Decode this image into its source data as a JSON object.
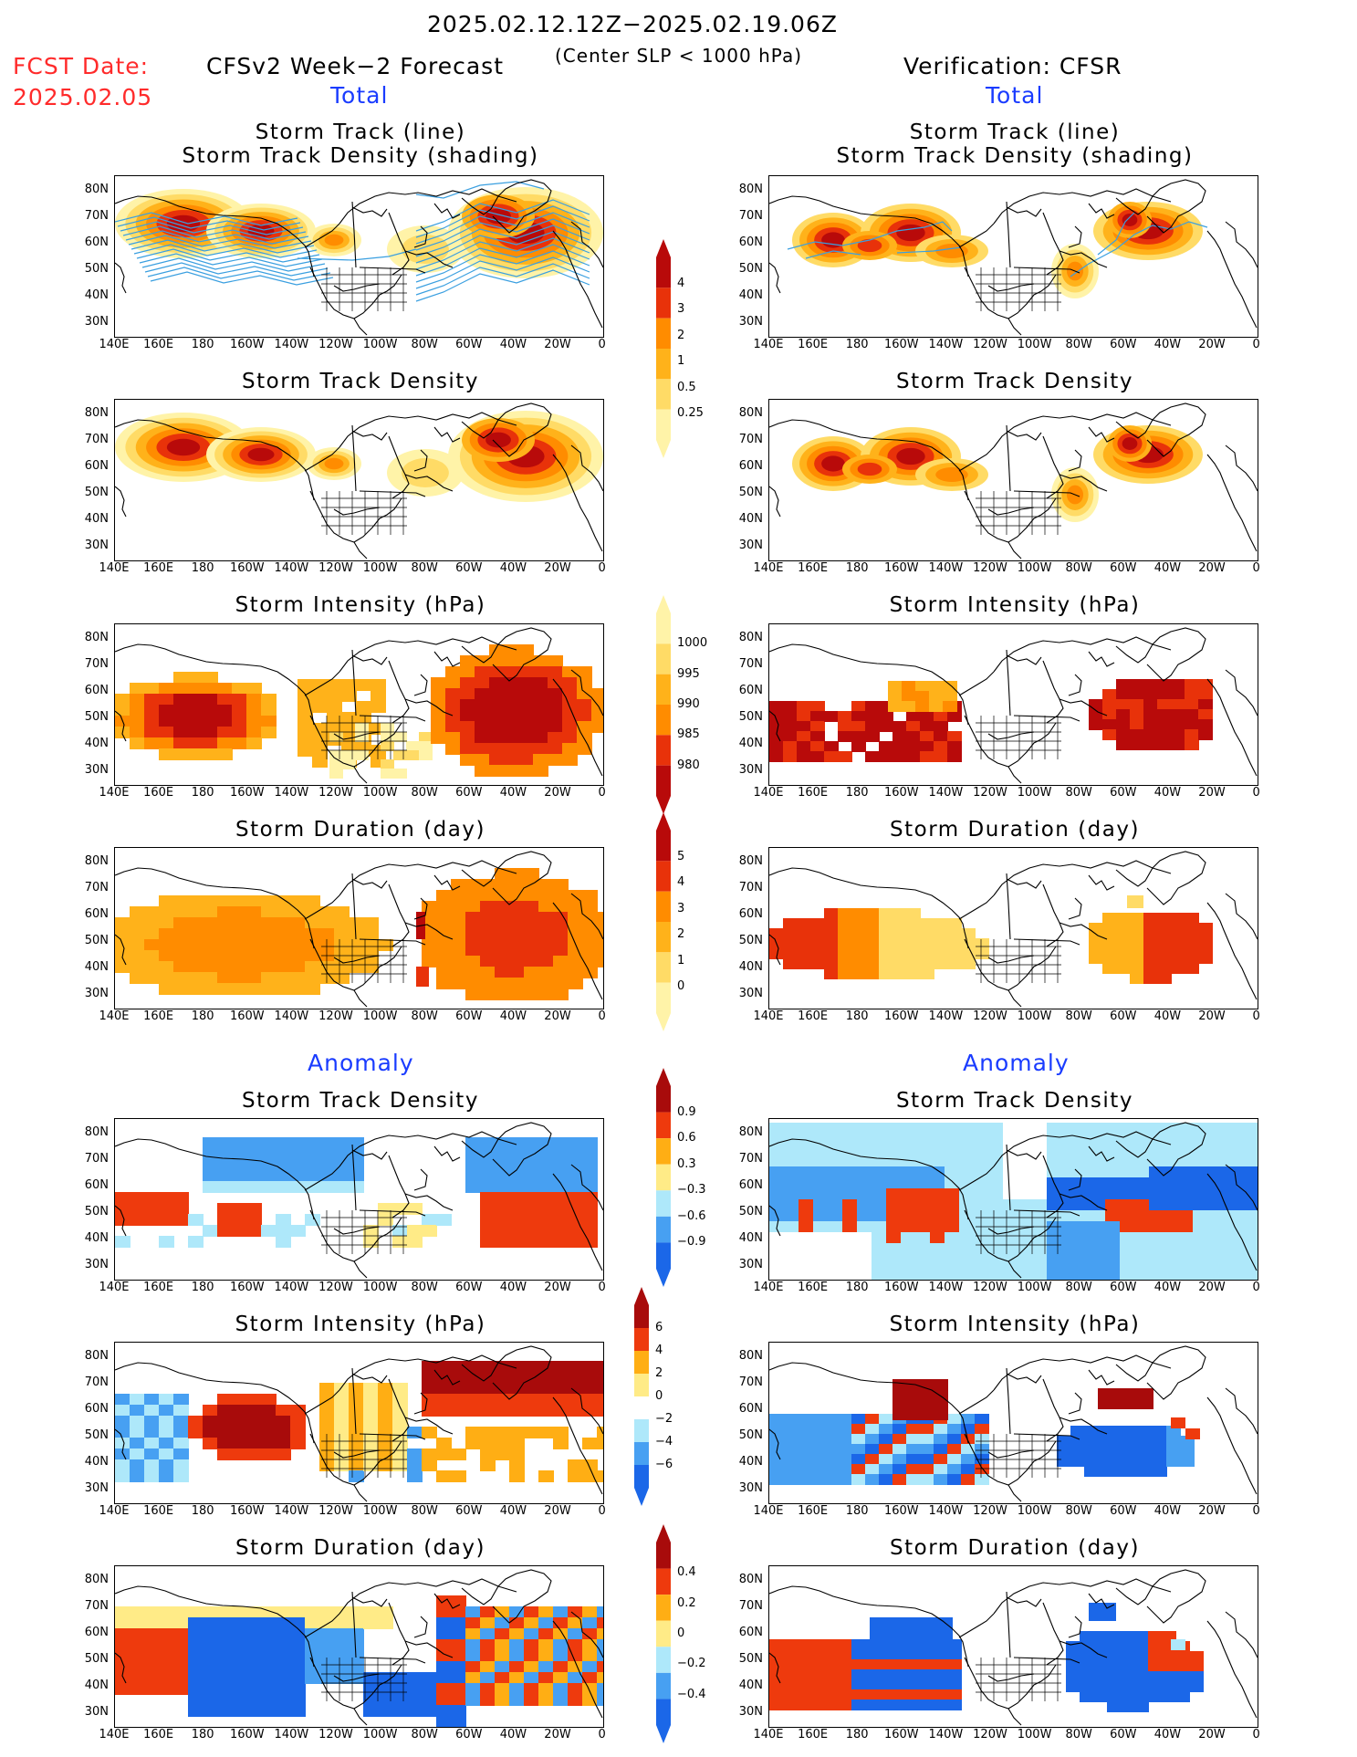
{
  "header": {
    "date_range": "2025.02.12.12Z−2025.02.19.06Z",
    "fcst_label": "FCST Date:",
    "fcst_date": "2025.02.05",
    "left_title": "CFSv2 Week−2 Forecast",
    "criterion": "(Center SLP < 1000 hPa)",
    "right_title": "Verification: CFSR",
    "total_label": "Total",
    "anomaly_label": "Anomaly"
  },
  "panel_titles": {
    "track_line": "Storm Track (line)",
    "track_shading": "Storm Track Density (shading)",
    "density": "Storm Track Density",
    "intensity": "Storm Intensity (hPa)",
    "duration": "Storm Duration (day)"
  },
  "axes": {
    "lat_labels": [
      "80N",
      "70N",
      "60N",
      "50N",
      "40N",
      "30N"
    ],
    "lon_labels": [
      "140E",
      "160E",
      "180",
      "160W",
      "140W",
      "120W",
      "100W",
      "80W",
      "60W",
      "40W",
      "20W",
      "0"
    ]
  },
  "colorbars": {
    "track_density_total": [
      "0.25",
      "0.5",
      "1",
      "2",
      "3",
      "4"
    ],
    "intensity_total": [
      "1000",
      "995",
      "990",
      "985",
      "980"
    ],
    "duration_total": [
      "0",
      "1",
      "2",
      "3",
      "4",
      "5"
    ],
    "density_anomaly": [
      "0.9",
      "0.6",
      "0.3",
      "−0.3",
      "−0.6",
      "−0.9"
    ],
    "intensity_anomaly": [
      "6",
      "4",
      "2",
      "0",
      "−2",
      "−4",
      "−6"
    ],
    "duration_anomaly": [
      "0.4",
      "0.2",
      "0",
      "−0.2",
      "−0.4"
    ]
  },
  "colors": {
    "seq": [
      "#fff3a8",
      "#ffdb66",
      "#ffb21a",
      "#ff8c00",
      "#e8320a",
      "#b80a0a"
    ],
    "div": [
      "#1b67e8",
      "#47a0f2",
      "#aee8fa",
      "#ffffff",
      "#ffeb87",
      "#ffae14",
      "#ee3a0d",
      "#a80b0b"
    ],
    "track": "#3a9fe0"
  }
}
